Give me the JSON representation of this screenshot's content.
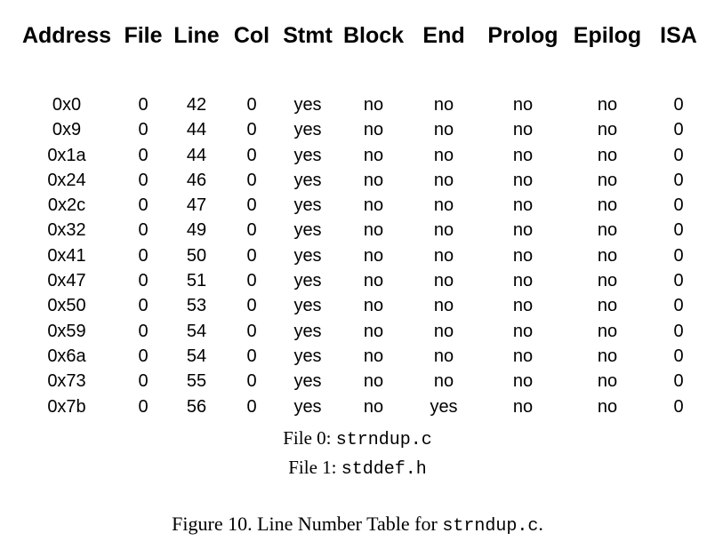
{
  "table": {
    "headers": [
      "Address",
      "File",
      "Line",
      "Col",
      "Stmt",
      "Block",
      "End",
      "Prolog",
      "Epilog",
      "ISA"
    ],
    "rows": [
      [
        "0x0",
        "0",
        "42",
        "0",
        "yes",
        "no",
        "no",
        "no",
        "no",
        "0"
      ],
      [
        "0x9",
        "0",
        "44",
        "0",
        "yes",
        "no",
        "no",
        "no",
        "no",
        "0"
      ],
      [
        "0x1a",
        "0",
        "44",
        "0",
        "yes",
        "no",
        "no",
        "no",
        "no",
        "0"
      ],
      [
        "0x24",
        "0",
        "46",
        "0",
        "yes",
        "no",
        "no",
        "no",
        "no",
        "0"
      ],
      [
        "0x2c",
        "0",
        "47",
        "0",
        "yes",
        "no",
        "no",
        "no",
        "no",
        "0"
      ],
      [
        "0x32",
        "0",
        "49",
        "0",
        "yes",
        "no",
        "no",
        "no",
        "no",
        "0"
      ],
      [
        "0x41",
        "0",
        "50",
        "0",
        "yes",
        "no",
        "no",
        "no",
        "no",
        "0"
      ],
      [
        "0x47",
        "0",
        "51",
        "0",
        "yes",
        "no",
        "no",
        "no",
        "no",
        "0"
      ],
      [
        "0x50",
        "0",
        "53",
        "0",
        "yes",
        "no",
        "no",
        "no",
        "no",
        "0"
      ],
      [
        "0x59",
        "0",
        "54",
        "0",
        "yes",
        "no",
        "no",
        "no",
        "no",
        "0"
      ],
      [
        "0x6a",
        "0",
        "54",
        "0",
        "yes",
        "no",
        "no",
        "no",
        "no",
        "0"
      ],
      [
        "0x73",
        "0",
        "55",
        "0",
        "yes",
        "no",
        "no",
        "no",
        "no",
        "0"
      ],
      [
        "0x7b",
        "0",
        "56",
        "0",
        "yes",
        "no",
        "yes",
        "no",
        "no",
        "0"
      ]
    ]
  },
  "files": [
    {
      "label": "File 0: ",
      "name": "strndup.c"
    },
    {
      "label": "File 1: ",
      "name": "stddef.h"
    }
  ],
  "caption": {
    "prefix": "Figure 10.  Line Number Table for ",
    "code": "strndup.c",
    "suffix": "."
  }
}
